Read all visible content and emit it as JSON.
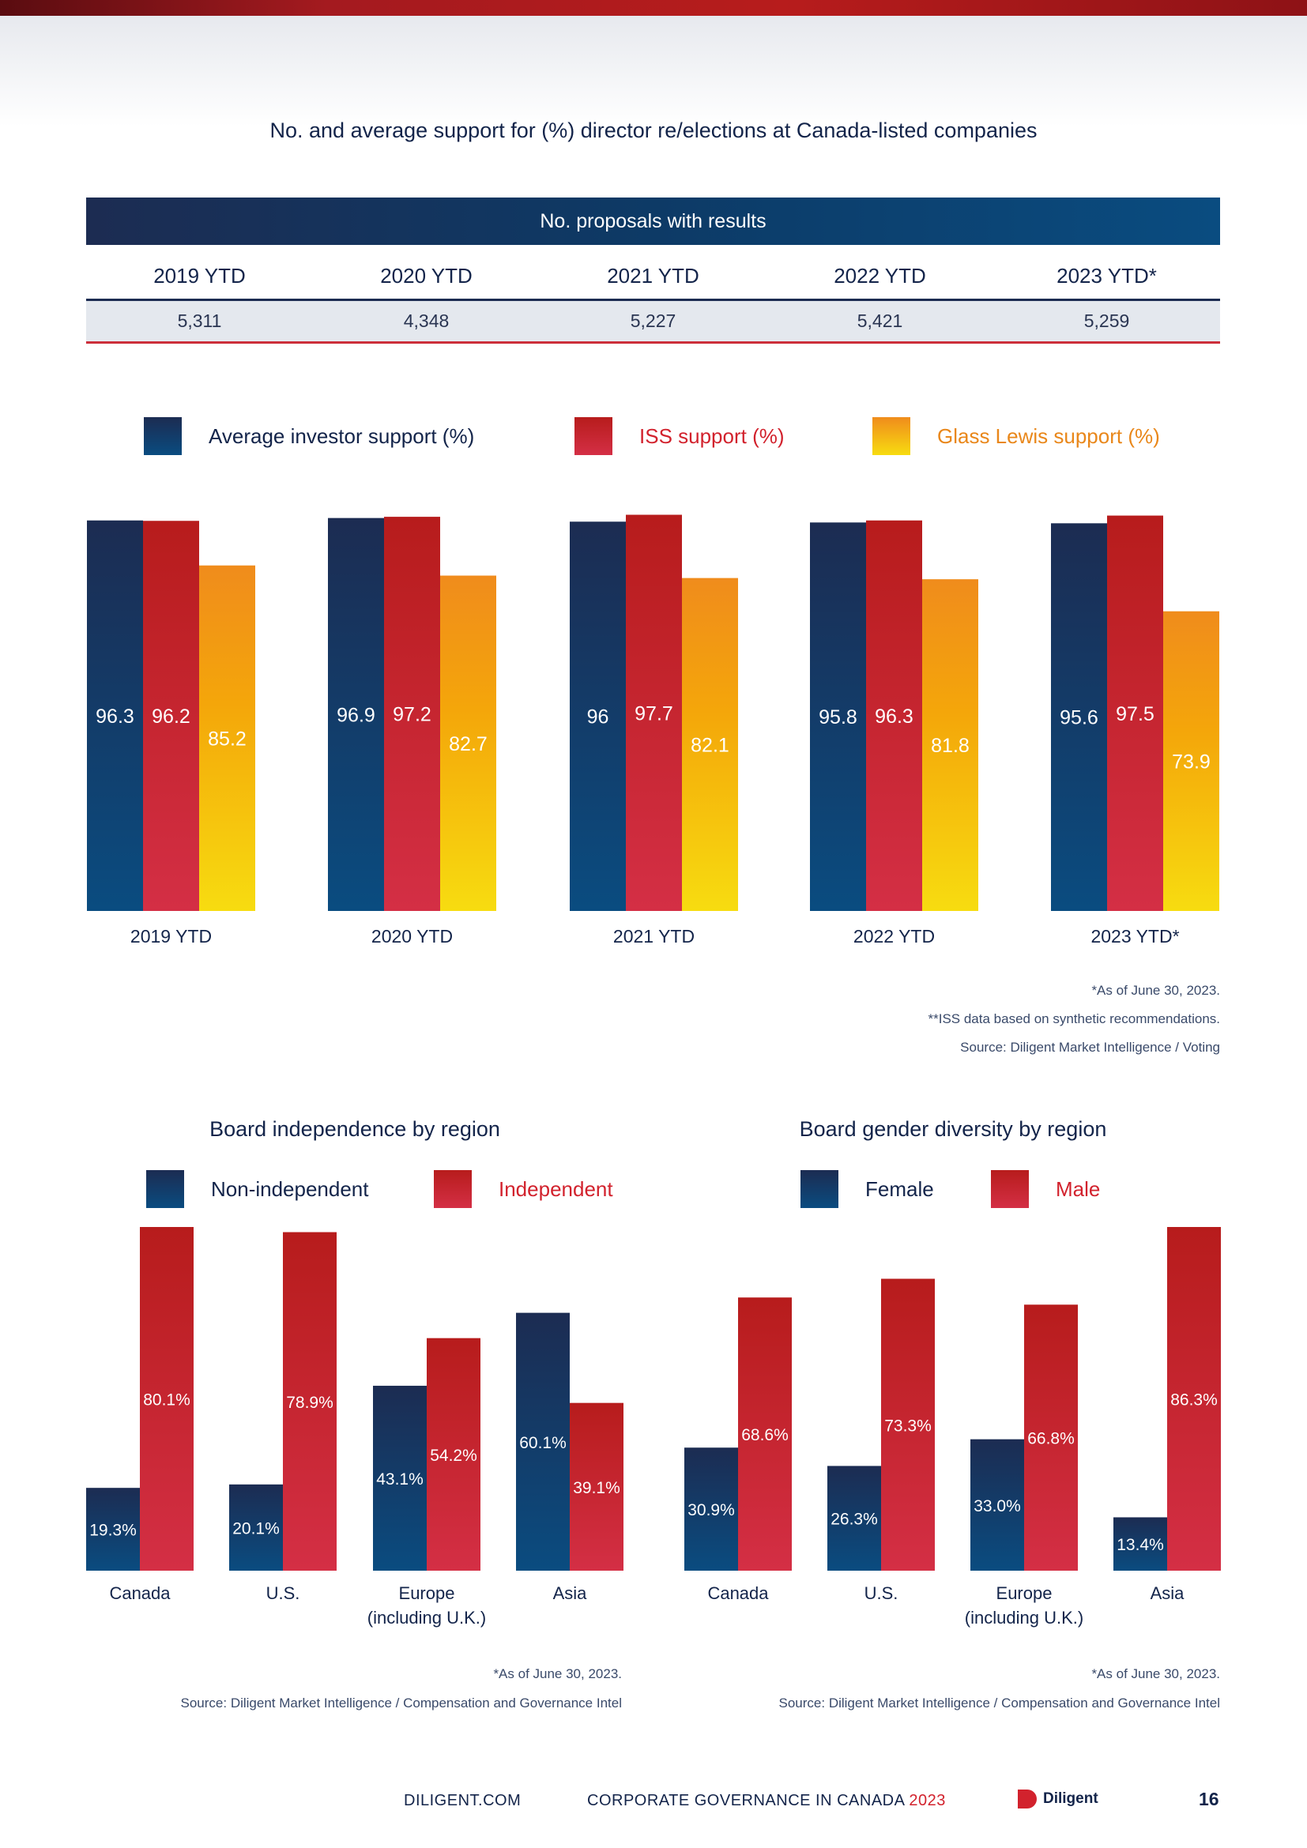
{
  "header": {
    "title": "No. and average support for (%) director re/elections at Canada-listed companies"
  },
  "proposals_table": {
    "banner": "No. proposals with results",
    "columns": [
      "2019 YTD",
      "2020 YTD",
      "2021 YTD",
      "2022 YTD",
      "2023 YTD*"
    ],
    "values": [
      "5,311",
      "4,348",
      "5,227",
      "5,421",
      "5,259"
    ]
  },
  "support_legend": [
    {
      "label": "Average investor support (%)",
      "color": "#13244a"
    },
    {
      "label": "ISS support (%)",
      "color": "#d2222d"
    },
    {
      "label": "Glass Lewis support (%)",
      "color": "#e9871a"
    }
  ],
  "support_notes": [
    "*As of June 30, 2023.",
    "**ISS data based on synthetic recommendations.",
    "Source: Diligent Market Intelligence / Voting"
  ],
  "independence": {
    "title": "Board independence by region",
    "legend": [
      {
        "label": "Non-independent",
        "color": "#13244a"
      },
      {
        "label": "Independent",
        "color": "#d2222d"
      }
    ],
    "notes": [
      "*As of June 30, 2023.",
      "Source: Diligent Market Intelligence / Compensation and Governance Intel"
    ]
  },
  "gender": {
    "title": "Board gender diversity by region",
    "legend": [
      {
        "label": "Female",
        "color": "#13244a"
      },
      {
        "label": "Male",
        "color": "#d2222d"
      }
    ],
    "notes": [
      "*As of June 30, 2023.",
      "Source: Diligent Market Intelligence / Compensation and Governance Intel"
    ]
  },
  "chart_data": [
    {
      "type": "bar",
      "title": "No. and average support for (%) director re/elections at Canada-listed companies",
      "categories": [
        "2019 YTD",
        "2020 YTD",
        "2021 YTD",
        "2022 YTD",
        "2023 YTD*"
      ],
      "series": [
        {
          "name": "Average investor support (%)",
          "values": [
            96.3,
            96.9,
            96,
            95.8,
            95.6
          ],
          "labels": [
            "96.3",
            "96.9",
            "96",
            "95.8",
            "95.6"
          ]
        },
        {
          "name": "ISS support (%)",
          "values": [
            96.2,
            97.2,
            97.7,
            96.3,
            97.5
          ],
          "labels": [
            "96.2",
            "97.2",
            "97.7",
            "96.3",
            "97.5"
          ]
        },
        {
          "name": "Glass Lewis support (%)",
          "values": [
            85.2,
            82.7,
            82.1,
            81.8,
            73.9
          ],
          "labels": [
            "85.2",
            "82.7",
            "82.1",
            "81.8",
            "73.9"
          ]
        }
      ],
      "ylim": [
        0,
        98
      ],
      "legend_position": "top",
      "grid": false
    },
    {
      "type": "bar",
      "title": "Board independence by region",
      "categories": [
        "Canada",
        "U.S.",
        "Europe\n(including U.K.)",
        "Asia"
      ],
      "series": [
        {
          "name": "Non-independent",
          "values": [
            19.3,
            20.1,
            43.1,
            60.1
          ],
          "labels": [
            "19.3%",
            "20.1%",
            "43.1%",
            "60.1%"
          ]
        },
        {
          "name": "Independent",
          "values": [
            80.1,
            78.9,
            54.2,
            39.1
          ],
          "labels": [
            "80.1%",
            "78.9%",
            "54.2%",
            "39.1%"
          ]
        }
      ],
      "ylim": [
        0,
        80.1
      ],
      "legend_position": "top",
      "grid": false
    },
    {
      "type": "bar",
      "title": "Board gender diversity by region",
      "categories": [
        "Canada",
        "U.S.",
        "Europe\n(including U.K.)",
        "Asia"
      ],
      "series": [
        {
          "name": "Female",
          "values": [
            30.9,
            26.3,
            33.0,
            13.4
          ],
          "labels": [
            "30.9%",
            "26.3%",
            "33.0%",
            "13.4%"
          ]
        },
        {
          "name": "Male",
          "values": [
            68.6,
            73.3,
            66.8,
            86.3
          ],
          "labels": [
            "68.6%",
            "73.3%",
            "66.8%",
            "86.3%"
          ]
        }
      ],
      "ylim": [
        0,
        86.3
      ],
      "legend_position": "top",
      "grid": false
    }
  ],
  "footer": {
    "site": "DILIGENT.COM",
    "publication": "CORPORATE GOVERNANCE IN CANADA",
    "year": "2023",
    "brand": "Diligent",
    "page": "16"
  }
}
